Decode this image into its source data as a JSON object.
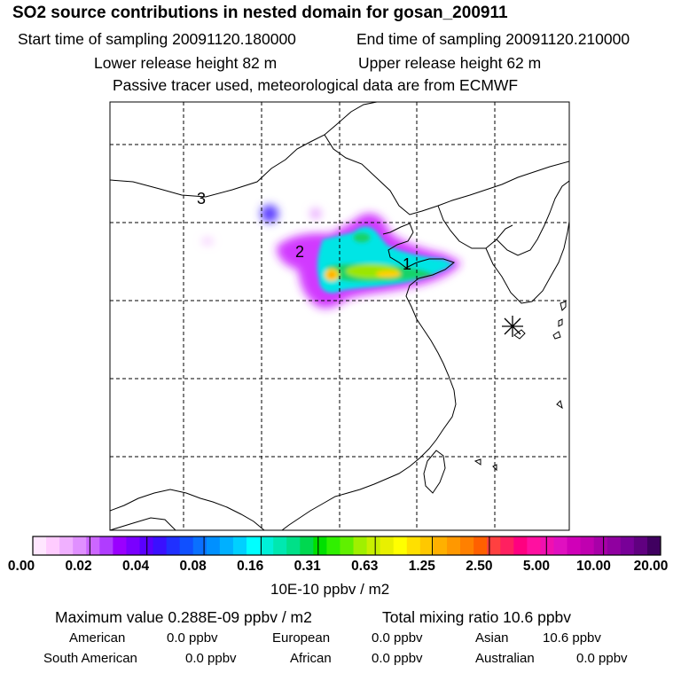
{
  "header": {
    "title": "SO2 source contributions in nested domain for gosan_200911",
    "start_time": "Start time of sampling 20091120.180000",
    "end_time": "End time of sampling 20091120.210000",
    "lower_release": "Lower release height   82 m",
    "upper_release": "Upper release height   62 m",
    "tracer_note": "Passive tracer used, meteorological data are from ECMWF"
  },
  "map": {
    "region_labels": [
      "1",
      "2",
      "3"
    ],
    "receptor_marker": "asterisk-icon",
    "plume_colors": [
      "#cc22ff",
      "#4a3cff",
      "#00e5e5",
      "#17d36a",
      "#9be600",
      "#ffd000",
      "#ff9a00"
    ]
  },
  "legend": {
    "tick_labels": [
      "0.00",
      "0.02",
      "0.04",
      "0.08",
      "0.16",
      "0.31",
      "0.63",
      "1.25",
      "2.50",
      "5.00",
      "10.00",
      "20.00"
    ],
    "units": "10E-10 ppbv / m2",
    "colors": [
      "#ffe6ff",
      "#ffccff",
      "#f0b0ff",
      "#e090ff",
      "#cc66ff",
      "#b03cff",
      "#9a00ff",
      "#7a00ff",
      "#5a00ff",
      "#3a10ff",
      "#2030ff",
      "#1050ff",
      "#0a70ff",
      "#0090ff",
      "#00b0ff",
      "#00d0ff",
      "#00ffff",
      "#00f0d8",
      "#00e8b0",
      "#00e088",
      "#00d850",
      "#00e000",
      "#30f000",
      "#60f000",
      "#a0f000",
      "#c8f000",
      "#e8f000",
      "#ffff00",
      "#ffe000",
      "#ffc800",
      "#ffb000",
      "#ff9800",
      "#ff8000",
      "#ff6000",
      "#ff4040",
      "#ff2060",
      "#ff0080",
      "#ff10a0",
      "#f010b0",
      "#e010c0",
      "#d000b8",
      "#c000b0",
      "#a800a8",
      "#9000a0",
      "#780098",
      "#600080",
      "#400060"
    ]
  },
  "stats": {
    "max_value": "Maximum value  0.288E-09 ppbv / m2",
    "total_mixing": "Total mixing ratio       10.6 ppbv",
    "american_label": "American",
    "american_value": "0.0 ppbv",
    "european_label": "European",
    "european_value": "0.0 ppbv",
    "asian_label": "Asian",
    "asian_value": "10.6 ppbv",
    "south_american_label": "South American",
    "south_american_value": "0.0 ppbv",
    "african_label": "African",
    "african_value": "0.0 ppbv",
    "australian_label": "Australian",
    "australian_value": "0.0 ppbv"
  }
}
